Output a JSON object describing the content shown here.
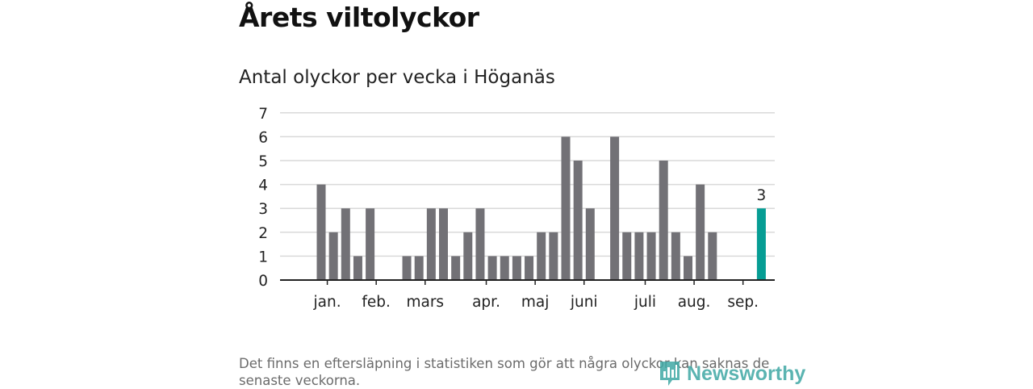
{
  "header": {
    "title": "Årets viltolyckor",
    "subtitle": "Antal olyckor per vecka i Höganäs"
  },
  "footer": {
    "note": "Det finns en eftersläpning i statistiken som gör att några olyckor kan saknas de senaste veckorna.",
    "brand": "Newsworthy"
  },
  "colors": {
    "bar": "#727176",
    "highlight": "#069d94",
    "grid": "#d9d9d9",
    "axis": "#222222"
  },
  "chart_data": {
    "type": "bar",
    "title": "Antal olyckor per vecka i Höganäs",
    "xlabel": "",
    "ylabel": "",
    "ylim": [
      0,
      7
    ],
    "yticks": [
      0,
      1,
      2,
      3,
      4,
      5,
      6,
      7
    ],
    "grid": true,
    "categories": [
      "1",
      "2",
      "3",
      "4",
      "5",
      "6",
      "7",
      "8",
      "9",
      "10",
      "11",
      "12",
      "13",
      "14",
      "15",
      "16",
      "17",
      "18",
      "19",
      "20",
      "21",
      "22",
      "23",
      "24",
      "25",
      "26",
      "27",
      "28",
      "29",
      "30",
      "31",
      "32",
      "33",
      "34",
      "35",
      "36",
      "37",
      "38",
      "39",
      "40"
    ],
    "values": [
      0,
      0,
      4,
      2,
      3,
      1,
      3,
      0,
      0,
      1,
      1,
      3,
      3,
      1,
      2,
      3,
      1,
      1,
      1,
      1,
      2,
      2,
      6,
      5,
      3,
      0,
      6,
      2,
      2,
      2,
      5,
      2,
      1,
      4,
      2,
      0,
      0,
      0,
      3,
      0
    ],
    "highlight_index": 38,
    "data_labels": [
      {
        "index": 38,
        "text": "3"
      }
    ],
    "month_labels": [
      {
        "label": "jan.",
        "week": 2.5
      },
      {
        "label": "feb.",
        "week": 6.5
      },
      {
        "label": "mars",
        "week": 10.5
      },
      {
        "label": "apr.",
        "week": 15.5
      },
      {
        "label": "maj",
        "week": 19.5
      },
      {
        "label": "juni",
        "week": 23.5
      },
      {
        "label": "juli",
        "week": 28.5
      },
      {
        "label": "aug.",
        "week": 32.5
      },
      {
        "label": "sep.",
        "week": 36.5
      }
    ]
  }
}
